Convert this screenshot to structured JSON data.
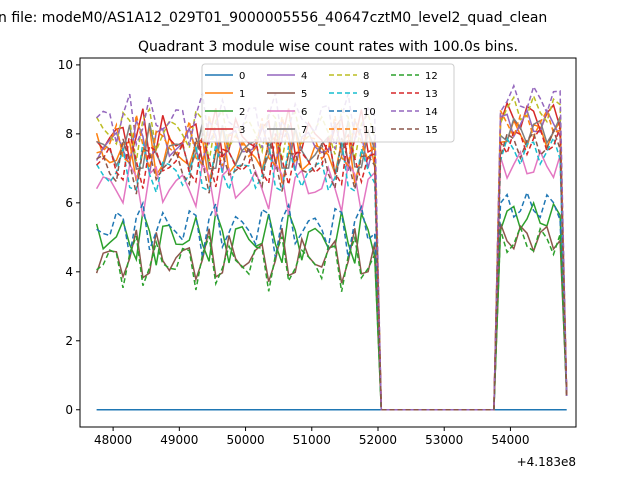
{
  "suptitle": "n file: modeM0/AS1A12_029T01_9000005556_40647cztM0_level2_quad_clean",
  "chart_data": {
    "type": "line",
    "title": "Quadrant 3 module wise count rates with 100.0s bins.",
    "xlabel": "",
    "ylabel": "",
    "x_offset_label": "+4.183e8",
    "xlim": [
      47500,
      54990
    ],
    "ylim": [
      -0.5,
      10.2
    ],
    "xticks": [
      48000,
      49000,
      50000,
      51000,
      52000,
      53000,
      54000
    ],
    "xtick_labels": [
      "48000",
      "49000",
      "50000",
      "51000",
      "52000",
      "53000",
      "54000"
    ],
    "yticks": [
      0,
      2,
      4,
      6,
      8,
      10
    ],
    "ytick_labels": [
      "0",
      "2",
      "4",
      "6",
      "8",
      "10"
    ],
    "grid": false,
    "legend_position": "top-center",
    "legend_columns": 4,
    "x_tail": [
      54000,
      54100,
      54200,
      54300,
      54400,
      54500,
      54600,
      54700,
      54800,
      54850
    ],
    "x": [
      47750,
      47850,
      47950,
      48050,
      48150,
      48250,
      48350,
      48450,
      48550,
      48650,
      48750,
      48850,
      48950,
      49050,
      49150,
      49250,
      49350,
      49450,
      49550,
      49650,
      49750,
      49850,
      49950,
      50050,
      50150,
      50250,
      50350,
      50450,
      50550,
      50650,
      50750,
      50850,
      50950,
      51050,
      51150,
      51250,
      51350,
      51450,
      51550,
      51650,
      51750,
      51850,
      51950,
      52050,
      52150,
      52250,
      52350,
      52450,
      52550,
      52650,
      52750,
      52850,
      52950,
      53050,
      53150,
      53250,
      53350,
      53450,
      53550,
      53650,
      53750,
      53850,
      53950,
      54050,
      54150,
      54250,
      54350,
      54450,
      54550,
      54650,
      54750,
      54850
    ],
    "series": [
      {
        "name": "0",
        "color": "#1f77b4",
        "dash": "solid",
        "level": 0.0
      },
      {
        "name": "1",
        "color": "#ff7f0e",
        "dash": "solid",
        "level": 7.4
      },
      {
        "name": "2",
        "color": "#2ca02c",
        "dash": "solid",
        "level": 5.0
      },
      {
        "name": "3",
        "color": "#d62728",
        "dash": "solid",
        "level": 7.9
      },
      {
        "name": "4",
        "color": "#9467bd",
        "dash": "solid",
        "level": 7.7
      },
      {
        "name": "5",
        "color": "#8c564b",
        "dash": "solid",
        "level": 4.4
      },
      {
        "name": "6",
        "color": "#e377c2",
        "dash": "solid",
        "level": 6.5
      },
      {
        "name": "7",
        "color": "#7f7f7f",
        "dash": "solid",
        "level": 7.5
      },
      {
        "name": "8",
        "color": "#bcbd22",
        "dash": "dashed",
        "level": 8.1
      },
      {
        "name": "9",
        "color": "#17becf",
        "dash": "dashed",
        "level": 6.9
      },
      {
        "name": "10",
        "color": "#1f77b4",
        "dash": "dashed",
        "level": 5.3
      },
      {
        "name": "11",
        "color": "#ff7f0e",
        "dash": "dashed",
        "level": 7.7
      },
      {
        "name": "12",
        "color": "#2ca02c",
        "dash": "dashed",
        "level": 4.3
      },
      {
        "name": "13",
        "color": "#d62728",
        "dash": "dashed",
        "level": 7.2
      },
      {
        "name": "14",
        "color": "#9467bd",
        "dash": "dashed",
        "level": 8.4
      },
      {
        "name": "15",
        "color": "#8c564b",
        "dash": "dashed",
        "level": 7.1
      }
    ]
  }
}
